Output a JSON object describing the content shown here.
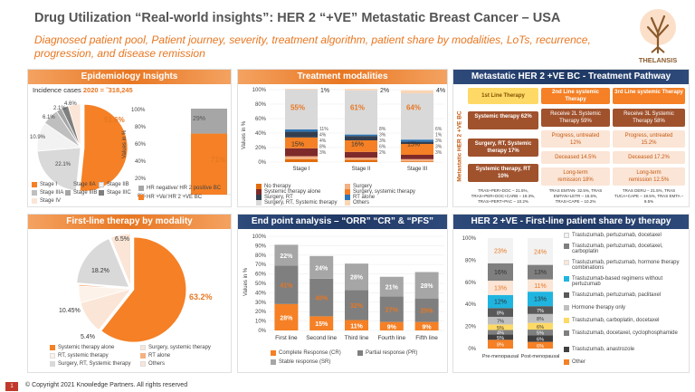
{
  "header": {
    "title": "Drug Utilization “Real-world insights”: HER 2 “+VE” Metastatic Breast Cancer – USA",
    "subtitle": "Diagnosed patient pool, Patient journey, severity, treatment algorithm, patient share by modalities, LoTs, recurrence, progression, and  disease remission",
    "logo_text": "THELANSIS"
  },
  "epidemiology": {
    "title": "Epidemiology Insights",
    "incidence_label": "Incidence cases",
    "incidence_value": "2020 = ˜318,245",
    "pie_labels": [
      "51.6%",
      "22.1%",
      "10.9%",
      "6.1%",
      "2.1%",
      "4.6%"
    ],
    "pie_legend": [
      "Stage I",
      "Stage IIA",
      "Stage IIB",
      "Stage IIIA",
      "Stage IIIB",
      "Stage IIIC",
      "Stage IV"
    ],
    "bar_axis_label": "Values in %",
    "bar_ticks": [
      "100%",
      "80%",
      "60%",
      "40%",
      "20%",
      "0%"
    ],
    "bar_labels": [
      "29%",
      "71%"
    ],
    "bar_legend": [
      "HR negative/ HR 2 positive BC",
      "HR +Ve/ HR 2 +VE BC"
    ],
    "colors": {
      "orange": "#f58025",
      "gray": "#a6a6a6"
    }
  },
  "chart_data": [
    {
      "type": "pie",
      "title": "Epidemiology Insights",
      "categories": [
        "Stage I",
        "Stage IIA",
        "Stage IIB",
        "Stage IIIA",
        "Stage IIIB",
        "Stage IIIC",
        "Stage IV"
      ],
      "values": [
        51.6,
        22.1,
        10.9,
        6.1,
        2.1,
        2.6,
        4.6
      ]
    },
    {
      "type": "bar",
      "ylabel": "Values in %",
      "series": [
        {
          "name": "HR +Ve/ HR 2 +VE BC",
          "values": [
            71
          ]
        },
        {
          "name": "HR negative/ HR 2 positive BC",
          "values": [
            29
          ]
        }
      ],
      "ylim": [
        0,
        100
      ]
    },
    {
      "type": "bar",
      "title": "Treatment modalities",
      "categories": [
        "Stage I",
        "Stage II",
        "Stage III"
      ],
      "ylabel": "Values in %",
      "series": [
        {
          "name": "No therapy",
          "values": [
            4,
            3,
            1
          ]
        },
        {
          "name": "Surgery",
          "values": [
            4,
            3,
            3
          ]
        },
        {
          "name": "Systemic therapy alone",
          "values": [
            11,
            8,
            6
          ]
        },
        {
          "name": "Surgery, systemic therapy",
          "values": [
            15,
            16,
            15
          ]
        },
        {
          "name": "Surgery, RT",
          "values": [
            8,
            6,
            3
          ]
        },
        {
          "name": "RT alone",
          "values": [
            3,
            2,
            3
          ]
        },
        {
          "name": "Surgery, RT, Systemic therapy",
          "values": [
            55,
            61,
            64
          ]
        },
        {
          "name": "Others",
          "values": [
            1,
            2,
            4
          ]
        }
      ]
    },
    {
      "type": "pie",
      "title": "First-line therapy by modality",
      "categories": [
        "Systemic therapy alone",
        "Surgery, systemic therapy",
        "RT, systemic therapy",
        "RT alone",
        "Surgery, RT, Systemic therapy",
        "Others"
      ],
      "values": [
        63.2,
        10.45,
        5.4,
        0.5,
        18.2,
        6.5
      ]
    },
    {
      "type": "bar",
      "title": "End point analysis – “ORR” “CR” & “PFS”",
      "categories": [
        "First line",
        "Second line",
        "Third line",
        "Fourth line",
        "Fifth line"
      ],
      "ylabel": "Values in %",
      "ylim": [
        0,
        100
      ],
      "series": [
        {
          "name": "Complete Response (CR)",
          "values": [
            28,
            15,
            11,
            9,
            9
          ]
        },
        {
          "name": "Partial response (PR)",
          "values": [
            41,
            40,
            32,
            27,
            25
          ]
        },
        {
          "name": "Stable response (SR)",
          "values": [
            22,
            24,
            28,
            21,
            28
          ]
        }
      ]
    },
    {
      "type": "bar",
      "title": "HER 2 +VE - First-line patient share by therapy",
      "categories": [
        "Pre-menopausal",
        "Post-menopausal"
      ],
      "ylim": [
        0,
        100
      ],
      "series": [
        {
          "name": "Other",
          "values": [
            8,
            6
          ]
        },
        {
          "name": "Trastuzumab, anastrozole",
          "values": [
            5,
            6
          ]
        },
        {
          "name": "Trastuzumab, docetaxel, cyclophosphamide",
          "values": [
            4,
            5
          ]
        },
        {
          "name": "Trastuzumab, carboplatin, docetaxel",
          "values": [
            5,
            6
          ]
        },
        {
          "name": "Hormone therapy only",
          "values": [
            7,
            8
          ]
        },
        {
          "name": "Trastuzumab, pertuzumab, paclitaxel",
          "values": [
            8,
            7
          ]
        },
        {
          "name": "Trastuzumab-based regimens without pertuzumab",
          "values": [
            12,
            13
          ]
        },
        {
          "name": "Trastuzumab, pertuzumab, hormone therapy combinations",
          "values": [
            13,
            11
          ]
        },
        {
          "name": "Trastuzumab, pertuzumab, docetaxel, carboplatin",
          "values": [
            16,
            13
          ]
        },
        {
          "name": "Trastuzumab, pertuzumab, docetaxel",
          "values": [
            23,
            24
          ]
        }
      ]
    }
  ],
  "treatment": {
    "title": "Treatment modalities",
    "axis_label": "Values in %",
    "ticks": [
      "100%",
      "80%",
      "60%",
      "40%",
      "20%",
      "0%"
    ],
    "categories": [
      "Stage I",
      "Stage II",
      "Stage III"
    ],
    "legend": [
      "No therapy",
      "Surgery",
      "Systemic therapy alone",
      "Surgery, systemic therapy",
      "Surgery, RT",
      "RT alone",
      "Surgery, RT, Systemic therapy",
      "Others"
    ],
    "colors": [
      "#e36c0a",
      "#f4b183",
      "#7f2a2a",
      "#f58025",
      "#333f50",
      "#2e75b6",
      "#d9d9d9",
      "#fcd5b4"
    ],
    "labels_top": [
      "1%",
      "2%",
      "4%"
    ],
    "labels_big": [
      "55%",
      "61%",
      "64%"
    ],
    "labels_mid": [
      "15%",
      "16%",
      "15%"
    ],
    "labels_small": [
      [
        "11%",
        "4%",
        "4%",
        "8%",
        "3%"
      ],
      [
        "8%",
        "3%",
        "3%",
        "6%",
        "2%"
      ],
      [
        "6%",
        "1%",
        "3%",
        "3%",
        "3%"
      ]
    ]
  },
  "pathway": {
    "title": "Metastatic HER 2 +VE BC - Treatment Pathway",
    "side_label": "Metastatic HER 2 +VE BC",
    "col_heads": [
      "1st Line Therapy",
      "2nd Line systemic Therapy",
      "3rd Line systemic Therapy"
    ],
    "col1": [
      "Systemic therapy 62%",
      "Surgery, RT, Systemic therapy 17%",
      "Systemic therapy, RT 10%"
    ],
    "col2": [
      "Receive 2L Systemic Therapy 59%",
      "Progress, untreated 12%",
      "Deceased 14.5%",
      "Long-term remission 18%"
    ],
    "col3": [
      "Receive 3L Systemic Therapy 58%",
      "Progress, untreated 15.2%",
      "Deceased 17.2%",
      "Long-term remission 12.5%"
    ],
    "notes": [
      "TRAS+PER+DOC – 21.5%, TRAS+PER+DOC+CARB – 19.3%, TRAS+PERT+PAC – 10.2%",
      "TRAS EMTAN- 32.5%, TRAS EMTAN+LETR – 15.5%, TRAS+CAPE – 10.2%",
      "TRAS DERU – 21.5%, TRAS TUCA+CAPE – 19.5%, TRAS EMTA – 9.5%"
    ]
  },
  "firstline": {
    "title": "First-line therapy by modality",
    "labels": [
      "63.2%",
      "10.45%",
      "5.4%",
      "18.2%",
      "6.5%"
    ],
    "legend": [
      "Systemic therapy alone",
      "Surgery, systemic therapy",
      "RT, systemic therapy",
      "RT alone",
      "Surgery, RT, Systemic therapy",
      "Others"
    ],
    "colors": [
      "#f58025",
      "#fbe5d6",
      "#fdf2e9",
      "#f4b183",
      "#d9d9d9",
      "#fbe5d6"
    ]
  },
  "endpoint": {
    "title": "End point analysis – “ORR” “CR” & “PFS”",
    "axis_label": "Values in %",
    "ticks": [
      "100%",
      "90%",
      "80%",
      "70%",
      "60%",
      "50%",
      "40%",
      "30%",
      "20%",
      "10%",
      "0%"
    ],
    "legend": [
      "Complete Response (CR)",
      "Partial response (PR)",
      "Stable response (SR)"
    ],
    "colors": [
      "#f58025",
      "#7f7f7f",
      "#a6a6a6"
    ]
  },
  "share": {
    "title": "HER 2 +VE - First-line patient share by therapy",
    "ticks": [
      "100%",
      "80%",
      "60%",
      "40%",
      "20%",
      "0%"
    ],
    "legend": [
      "Trastuzumab, pertuzumab, docetaxel",
      "Trastuzumab, pertuzumab, docetaxel, carboplatin",
      "Trastuzumab, pertuzumab, hormone therapy combinations",
      "Trastuzumab-based regimens without pertuzumab",
      "Trastuzumab, pertuzumab, paclitaxel",
      "Hormone therapy only",
      "Trastuzumab, carboplatin, docetaxel",
      "Trastuzumab, docetaxel, cyclophosphamide",
      "Trastuzumab, anastrozole",
      "Other"
    ],
    "colors": [
      "#f2f2f2",
      "#7f7f7f",
      "#fbe5d6",
      "#1fb5e0",
      "#595959",
      "#bfbfbf",
      "#ffd966",
      "#7f7f7f",
      "#404040",
      "#f58025"
    ]
  },
  "footer": {
    "page_number": "1",
    "copyright": "© Copyright 2021  Knowledge Partners. All rights reserved"
  }
}
